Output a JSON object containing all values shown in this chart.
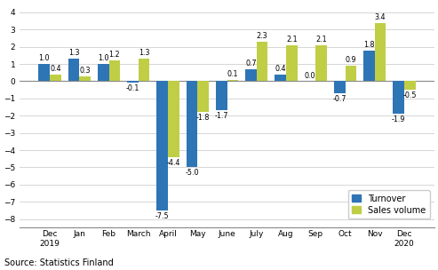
{
  "categories": [
    "Dec\n2019",
    "Jan",
    "Feb",
    "March",
    "April",
    "May",
    "June",
    "July",
    "Aug",
    "Sep",
    "Oct",
    "Nov",
    "Dec\n2020"
  ],
  "turnover": [
    1.0,
    1.3,
    1.0,
    -0.1,
    -7.5,
    -5.0,
    -1.7,
    0.7,
    0.4,
    0.0,
    -0.7,
    1.8,
    -1.9
  ],
  "sales_volume": [
    0.4,
    0.3,
    1.2,
    1.3,
    -4.4,
    -1.8,
    0.1,
    2.3,
    2.1,
    2.1,
    0.9,
    3.4,
    -0.5
  ],
  "turnover_color": "#2E75B6",
  "sales_volume_color": "#BFCE45",
  "ylim": [
    -8.5,
    4.5
  ],
  "yticks": [
    -8,
    -7,
    -6,
    -5,
    -4,
    -3,
    -2,
    -1,
    0,
    1,
    2,
    3,
    4
  ],
  "source_text": "Source: Statistics Finland",
  "legend_turnover": "Turnover",
  "legend_sales": "Sales volume",
  "background_color": "#ffffff",
  "grid_color": "#d0d0d0",
  "label_fontsize": 5.8,
  "tick_fontsize": 6.5,
  "legend_fontsize": 7.0,
  "source_fontsize": 7.0,
  "bar_width": 0.38
}
